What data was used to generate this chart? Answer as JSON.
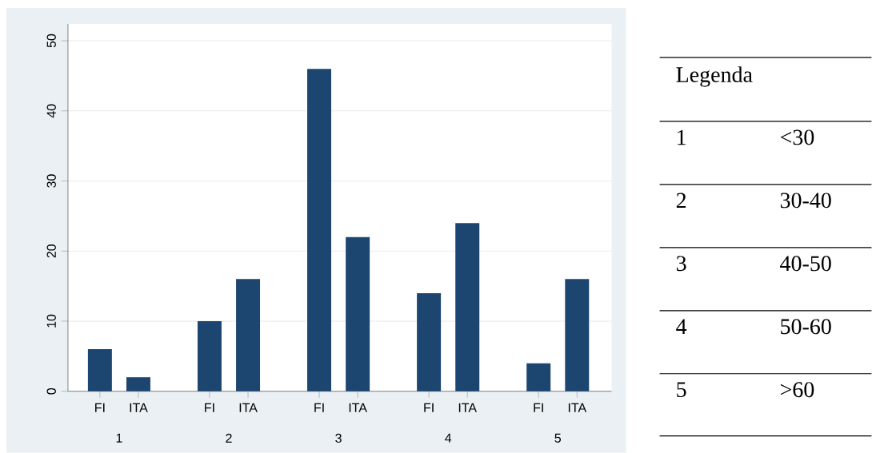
{
  "chart_data": {
    "type": "bar",
    "categories": [
      "FI",
      "ITA",
      "FI",
      "ITA",
      "FI",
      "ITA",
      "FI",
      "ITA",
      "FI",
      "ITA"
    ],
    "values": [
      6,
      2,
      10,
      16,
      46,
      22,
      14,
      24,
      4,
      16
    ],
    "color": "#1c4670",
    "ylim": [
      0,
      52.4
    ],
    "yticks": [
      0,
      10,
      20,
      30,
      40,
      50
    ],
    "grid": "y",
    "annotations": [
      "1",
      "2",
      "3",
      "4",
      "5",
      "Legenda",
      "1",
      "<30",
      "2",
      "30-40",
      "3",
      "40-50",
      "4",
      "50-60",
      "5",
      ">60"
    ]
  }
}
